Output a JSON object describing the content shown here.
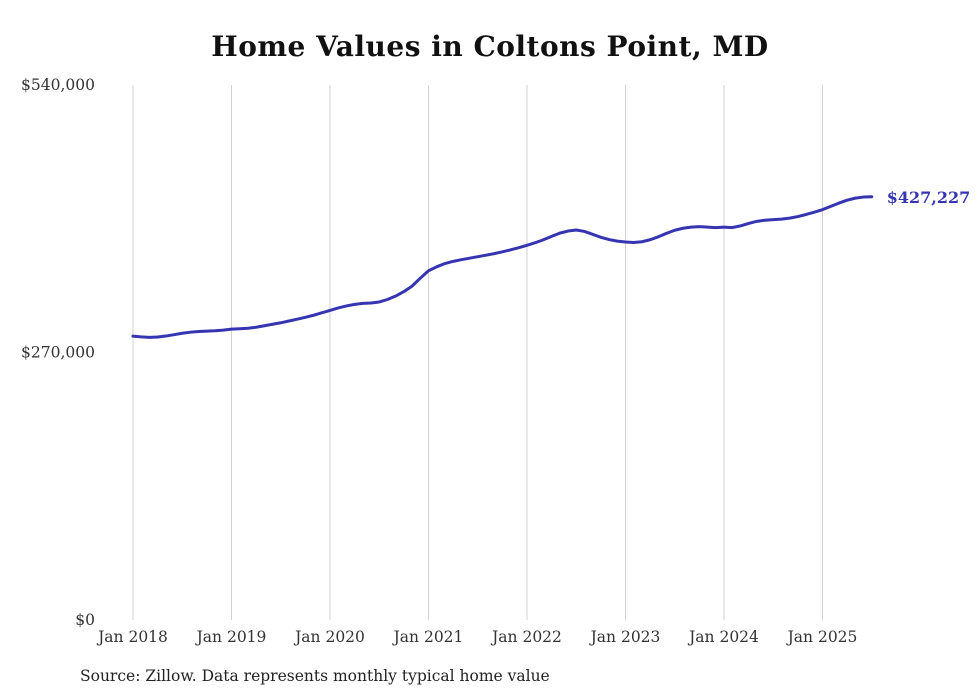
{
  "chart_data": {
    "type": "line",
    "title": "Home Values in Coltons Point, MD",
    "xlabel": "",
    "ylabel": "",
    "ylim": [
      0,
      540000
    ],
    "grid": "vertical-at-each-january",
    "legend_position": "none",
    "end_label": "$427,227",
    "source_note": "Source: Zillow. Data represents monthly typical home value",
    "colors": {
      "line": "#3535b2",
      "gridline": "#d2d2d2",
      "axis_text": "#333333"
    },
    "y_ticks": [
      {
        "value": 0,
        "label": "$0"
      },
      {
        "value": 270000,
        "label": "$270,000"
      },
      {
        "value": 540000,
        "label": "$540,000"
      }
    ],
    "x_tick_labels": [
      "Jan 2018",
      "Jan 2019",
      "Jan 2020",
      "Jan 2021",
      "Jan 2022",
      "Jan 2023",
      "Jan 2024",
      "Jan 2025"
    ],
    "series": [
      {
        "name": "Monthly typical home value",
        "start_month": "2018-01",
        "end_month": "2025-07",
        "values": [
          286500,
          285800,
          285300,
          285600,
          286600,
          288000,
          289400,
          290500,
          291200,
          291600,
          291900,
          292600,
          293600,
          294000,
          294500,
          295500,
          297000,
          298500,
          300000,
          301800,
          303600,
          305500,
          307600,
          310000,
          312500,
          315000,
          317000,
          318600,
          319600,
          320000,
          321000,
          323500,
          327000,
          331500,
          337000,
          345000,
          352500,
          356500,
          359800,
          362000,
          363700,
          365200,
          366700,
          368200,
          369800,
          371600,
          373600,
          375800,
          378200,
          380800,
          383800,
          387200,
          390500,
          392600,
          393600,
          392200,
          389300,
          386300,
          384000,
          382400,
          381500,
          381000,
          381800,
          383800,
          386800,
          390300,
          393400,
          395400,
          396500,
          397000,
          396600,
          396100,
          396500,
          396100,
          397800,
          400300,
          402400,
          403500,
          404100,
          404600,
          405600,
          407200,
          409300,
          411600,
          414200,
          417500,
          420800,
          423700,
          425800,
          426900,
          427227
        ]
      }
    ]
  }
}
